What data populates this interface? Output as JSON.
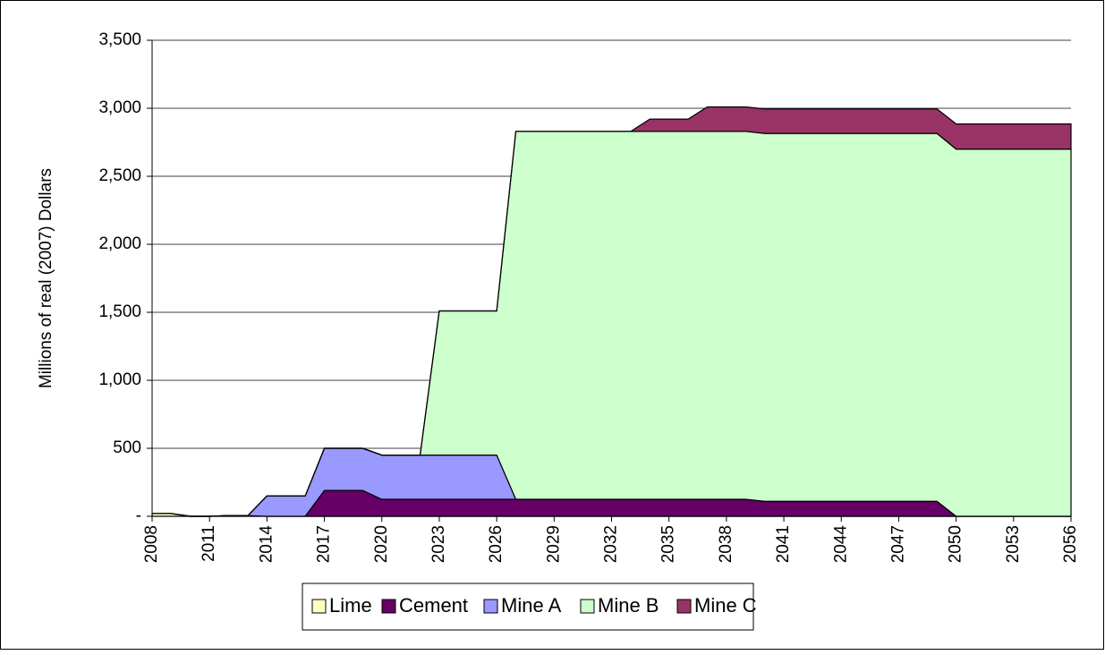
{
  "chart_data": {
    "type": "stacked-area",
    "y_label": "Millions of real (2007) Dollars",
    "categories": [
      "2008",
      null,
      null,
      "2011",
      null,
      null,
      "2014",
      null,
      null,
      "2017",
      null,
      null,
      "2020",
      null,
      null,
      "2023",
      null,
      null,
      "2026",
      null,
      null,
      "2029",
      null,
      null,
      "2032",
      null,
      null,
      "2035",
      null,
      null,
      "2038",
      null,
      null,
      "2041",
      null,
      null,
      "2044",
      null,
      null,
      "2047",
      null,
      null,
      "2050",
      null,
      null,
      "2053",
      null,
      null,
      "2056"
    ],
    "series": [
      {
        "name": "Lime",
        "color": "#ffffc0",
        "values": [
          20,
          20,
          0,
          0,
          5,
          5,
          0,
          0,
          0,
          0,
          0,
          0,
          0,
          0,
          0,
          0,
          0,
          0,
          0,
          0,
          0,
          0,
          0,
          0,
          0,
          0,
          0,
          0,
          0,
          0,
          0,
          0,
          0,
          0,
          0,
          0,
          0,
          0,
          0,
          0,
          0,
          0,
          0,
          0,
          0,
          0,
          0,
          0,
          0
        ]
      },
      {
        "name": "Cement",
        "color": "#660066",
        "values": [
          0,
          0,
          0,
          0,
          0,
          0,
          0,
          0,
          0,
          190,
          190,
          190,
          125,
          125,
          125,
          125,
          125,
          125,
          125,
          125,
          125,
          125,
          125,
          125,
          125,
          125,
          125,
          125,
          125,
          125,
          125,
          125,
          110,
          110,
          110,
          110,
          110,
          110,
          110,
          110,
          110,
          110,
          0,
          0,
          0,
          0,
          0,
          0,
          0
        ]
      },
      {
        "name": "Mine A",
        "color": "#9999ff",
        "values": [
          0,
          0,
          0,
          0,
          0,
          0,
          150,
          150,
          150,
          310,
          310,
          310,
          325,
          325,
          325,
          325,
          325,
          325,
          325,
          0,
          0,
          0,
          0,
          0,
          0,
          0,
          0,
          0,
          0,
          0,
          0,
          0,
          0,
          0,
          0,
          0,
          0,
          0,
          0,
          0,
          0,
          0,
          0,
          0,
          0,
          0,
          0,
          0,
          0
        ]
      },
      {
        "name": "Mine B",
        "color": "#ccffcc",
        "values": [
          0,
          0,
          0,
          0,
          0,
          0,
          0,
          0,
          0,
          0,
          0,
          0,
          0,
          0,
          0,
          1060,
          1060,
          1060,
          1060,
          2705,
          2705,
          2705,
          2705,
          2705,
          2705,
          2705,
          2705,
          2705,
          2705,
          2705,
          2705,
          2705,
          2705,
          2705,
          2705,
          2705,
          2705,
          2705,
          2705,
          2705,
          2705,
          2705,
          2700,
          2700,
          2700,
          2700,
          2700,
          2700,
          2700
        ]
      },
      {
        "name": "Mine C",
        "color": "#993366",
        "values": [
          0,
          0,
          0,
          0,
          0,
          0,
          0,
          0,
          0,
          0,
          0,
          0,
          0,
          0,
          0,
          0,
          0,
          0,
          0,
          0,
          0,
          0,
          0,
          0,
          0,
          0,
          90,
          90,
          90,
          180,
          180,
          180,
          180,
          180,
          180,
          180,
          180,
          180,
          180,
          180,
          180,
          180,
          185,
          185,
          185,
          185,
          185,
          185,
          185
        ]
      }
    ],
    "ylim": [
      0,
      3500
    ],
    "yticks": [
      {
        "value": 0,
        "label": "-"
      },
      500,
      {
        "value": 1000,
        "label": "1,000"
      },
      {
        "value": 1500,
        "label": "1,500"
      },
      {
        "value": 2000,
        "label": "2,000"
      },
      {
        "value": 2500,
        "label": "2,500"
      },
      {
        "value": 3000,
        "label": "3,000"
      },
      {
        "value": 3500,
        "label": "3,500"
      }
    ],
    "grid": true,
    "legend": "bottom"
  }
}
